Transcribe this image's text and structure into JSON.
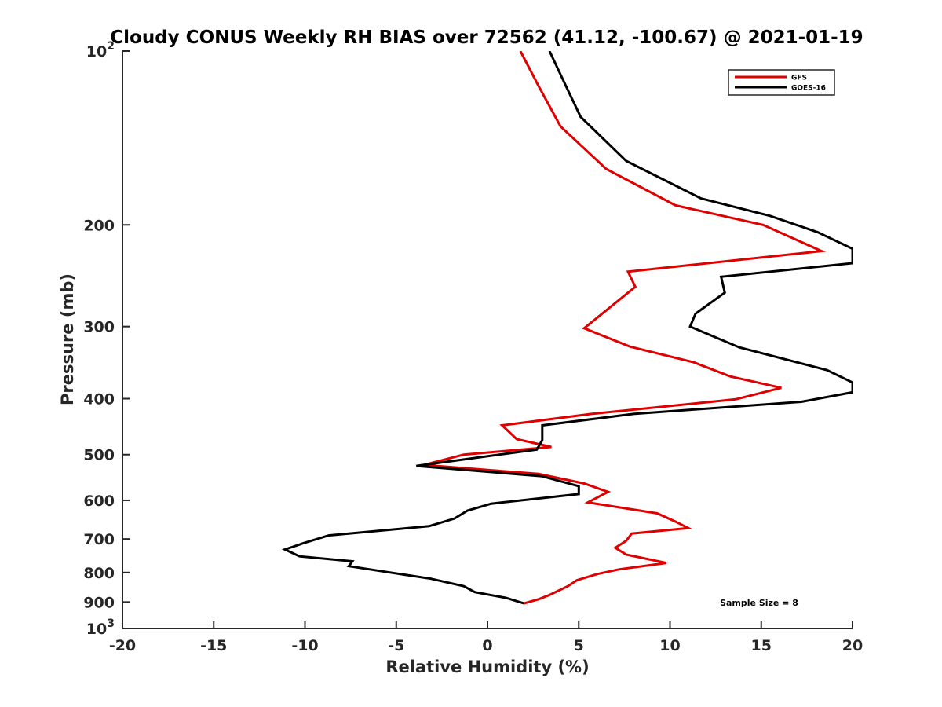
{
  "chart_data": {
    "type": "line",
    "title": "Cloudy CONUS Weekly RH BIAS over 72562 (41.12, -100.67) @ 2021-01-19",
    "xlabel": "Relative Humidity (%)",
    "ylabel": "Pressure (mb)",
    "xlim": [
      -20,
      20
    ],
    "ylim": [
      100,
      1000
    ],
    "yscale": "log",
    "y_reversed": true,
    "x_ticks": [
      "-20",
      "-15",
      "-10",
      "-5",
      "0",
      "5",
      "10",
      "15",
      "20"
    ],
    "y_ticks": [
      {
        "value": 100,
        "base": "10",
        "exp": "2"
      },
      {
        "value": 200,
        "label": "200"
      },
      {
        "value": 300,
        "label": "300"
      },
      {
        "value": 400,
        "label": "400"
      },
      {
        "value": 500,
        "label": "500"
      },
      {
        "value": 600,
        "label": "600"
      },
      {
        "value": 700,
        "label": "700"
      },
      {
        "value": 800,
        "label": "800"
      },
      {
        "value": 900,
        "label": "900"
      },
      {
        "value": 1000,
        "base": "10",
        "exp": "3"
      }
    ],
    "legend_position": "top-right",
    "annotation": "Sample Size = 8",
    "series": [
      {
        "name": "GFS",
        "color": "#e00000",
        "points": [
          [
            1.8,
            100
          ],
          [
            2.8,
            115
          ],
          [
            4.0,
            135
          ],
          [
            6.5,
            160
          ],
          [
            10.3,
            185
          ],
          [
            15.1,
            200
          ],
          [
            18.3,
            222
          ],
          [
            7.7,
            241
          ],
          [
            8.1,
            256
          ],
          [
            5.3,
            302
          ],
          [
            7.8,
            325
          ],
          [
            11.3,
            346
          ],
          [
            13.3,
            366
          ],
          [
            16.1,
            383
          ],
          [
            13.6,
            401
          ],
          [
            5.7,
            425
          ],
          [
            0.8,
            445
          ],
          [
            1.6,
            470
          ],
          [
            3.5,
            485
          ],
          [
            -1.3,
            500
          ],
          [
            -3.5,
            521
          ],
          [
            2.8,
            540
          ],
          [
            5.3,
            561
          ],
          [
            6.6,
            580
          ],
          [
            5.5,
            605
          ],
          [
            9.3,
            632
          ],
          [
            10.3,
            653
          ],
          [
            11.0,
            670
          ],
          [
            7.9,
            685
          ],
          [
            7.6,
            705
          ],
          [
            7.0,
            725
          ],
          [
            7.6,
            745
          ],
          [
            9.8,
            770
          ],
          [
            7.2,
            790
          ],
          [
            6.0,
            805
          ],
          [
            4.9,
            825
          ],
          [
            4.4,
            845
          ],
          [
            3.4,
            875
          ],
          [
            2.8,
            890
          ],
          [
            2.0,
            905
          ]
        ]
      },
      {
        "name": "GOES-16",
        "color": "#000000",
        "points": [
          [
            3.4,
            100
          ],
          [
            4.3,
            115
          ],
          [
            5.1,
            130
          ],
          [
            7.6,
            155
          ],
          [
            11.7,
            180
          ],
          [
            15.5,
            193
          ],
          [
            18.1,
            206
          ],
          [
            20.0,
            220
          ],
          [
            20.0,
            233
          ],
          [
            12.8,
            246
          ],
          [
            13.0,
            262
          ],
          [
            11.4,
            285
          ],
          [
            11.1,
            300
          ],
          [
            13.8,
            326
          ],
          [
            18.6,
            357
          ],
          [
            20.0,
            375
          ],
          [
            20.0,
            390
          ],
          [
            17.2,
            405
          ],
          [
            8.0,
            425
          ],
          [
            3.0,
            445
          ],
          [
            3.0,
            472
          ],
          [
            2.7,
            490
          ],
          [
            -3.9,
            523
          ],
          [
            3.0,
            545
          ],
          [
            5.0,
            567
          ],
          [
            5.0,
            585
          ],
          [
            0.2,
            608
          ],
          [
            -1.1,
            625
          ],
          [
            -1.8,
            645
          ],
          [
            -3.2,
            665
          ],
          [
            -8.7,
            690
          ],
          [
            -10.1,
            712
          ],
          [
            -11.1,
            730
          ],
          [
            -10.3,
            750
          ],
          [
            -7.4,
            765
          ],
          [
            -7.6,
            780
          ],
          [
            -3.1,
            820
          ],
          [
            -1.3,
            845
          ],
          [
            -0.7,
            865
          ],
          [
            1.0,
            885
          ],
          [
            2.0,
            905
          ]
        ]
      }
    ]
  }
}
